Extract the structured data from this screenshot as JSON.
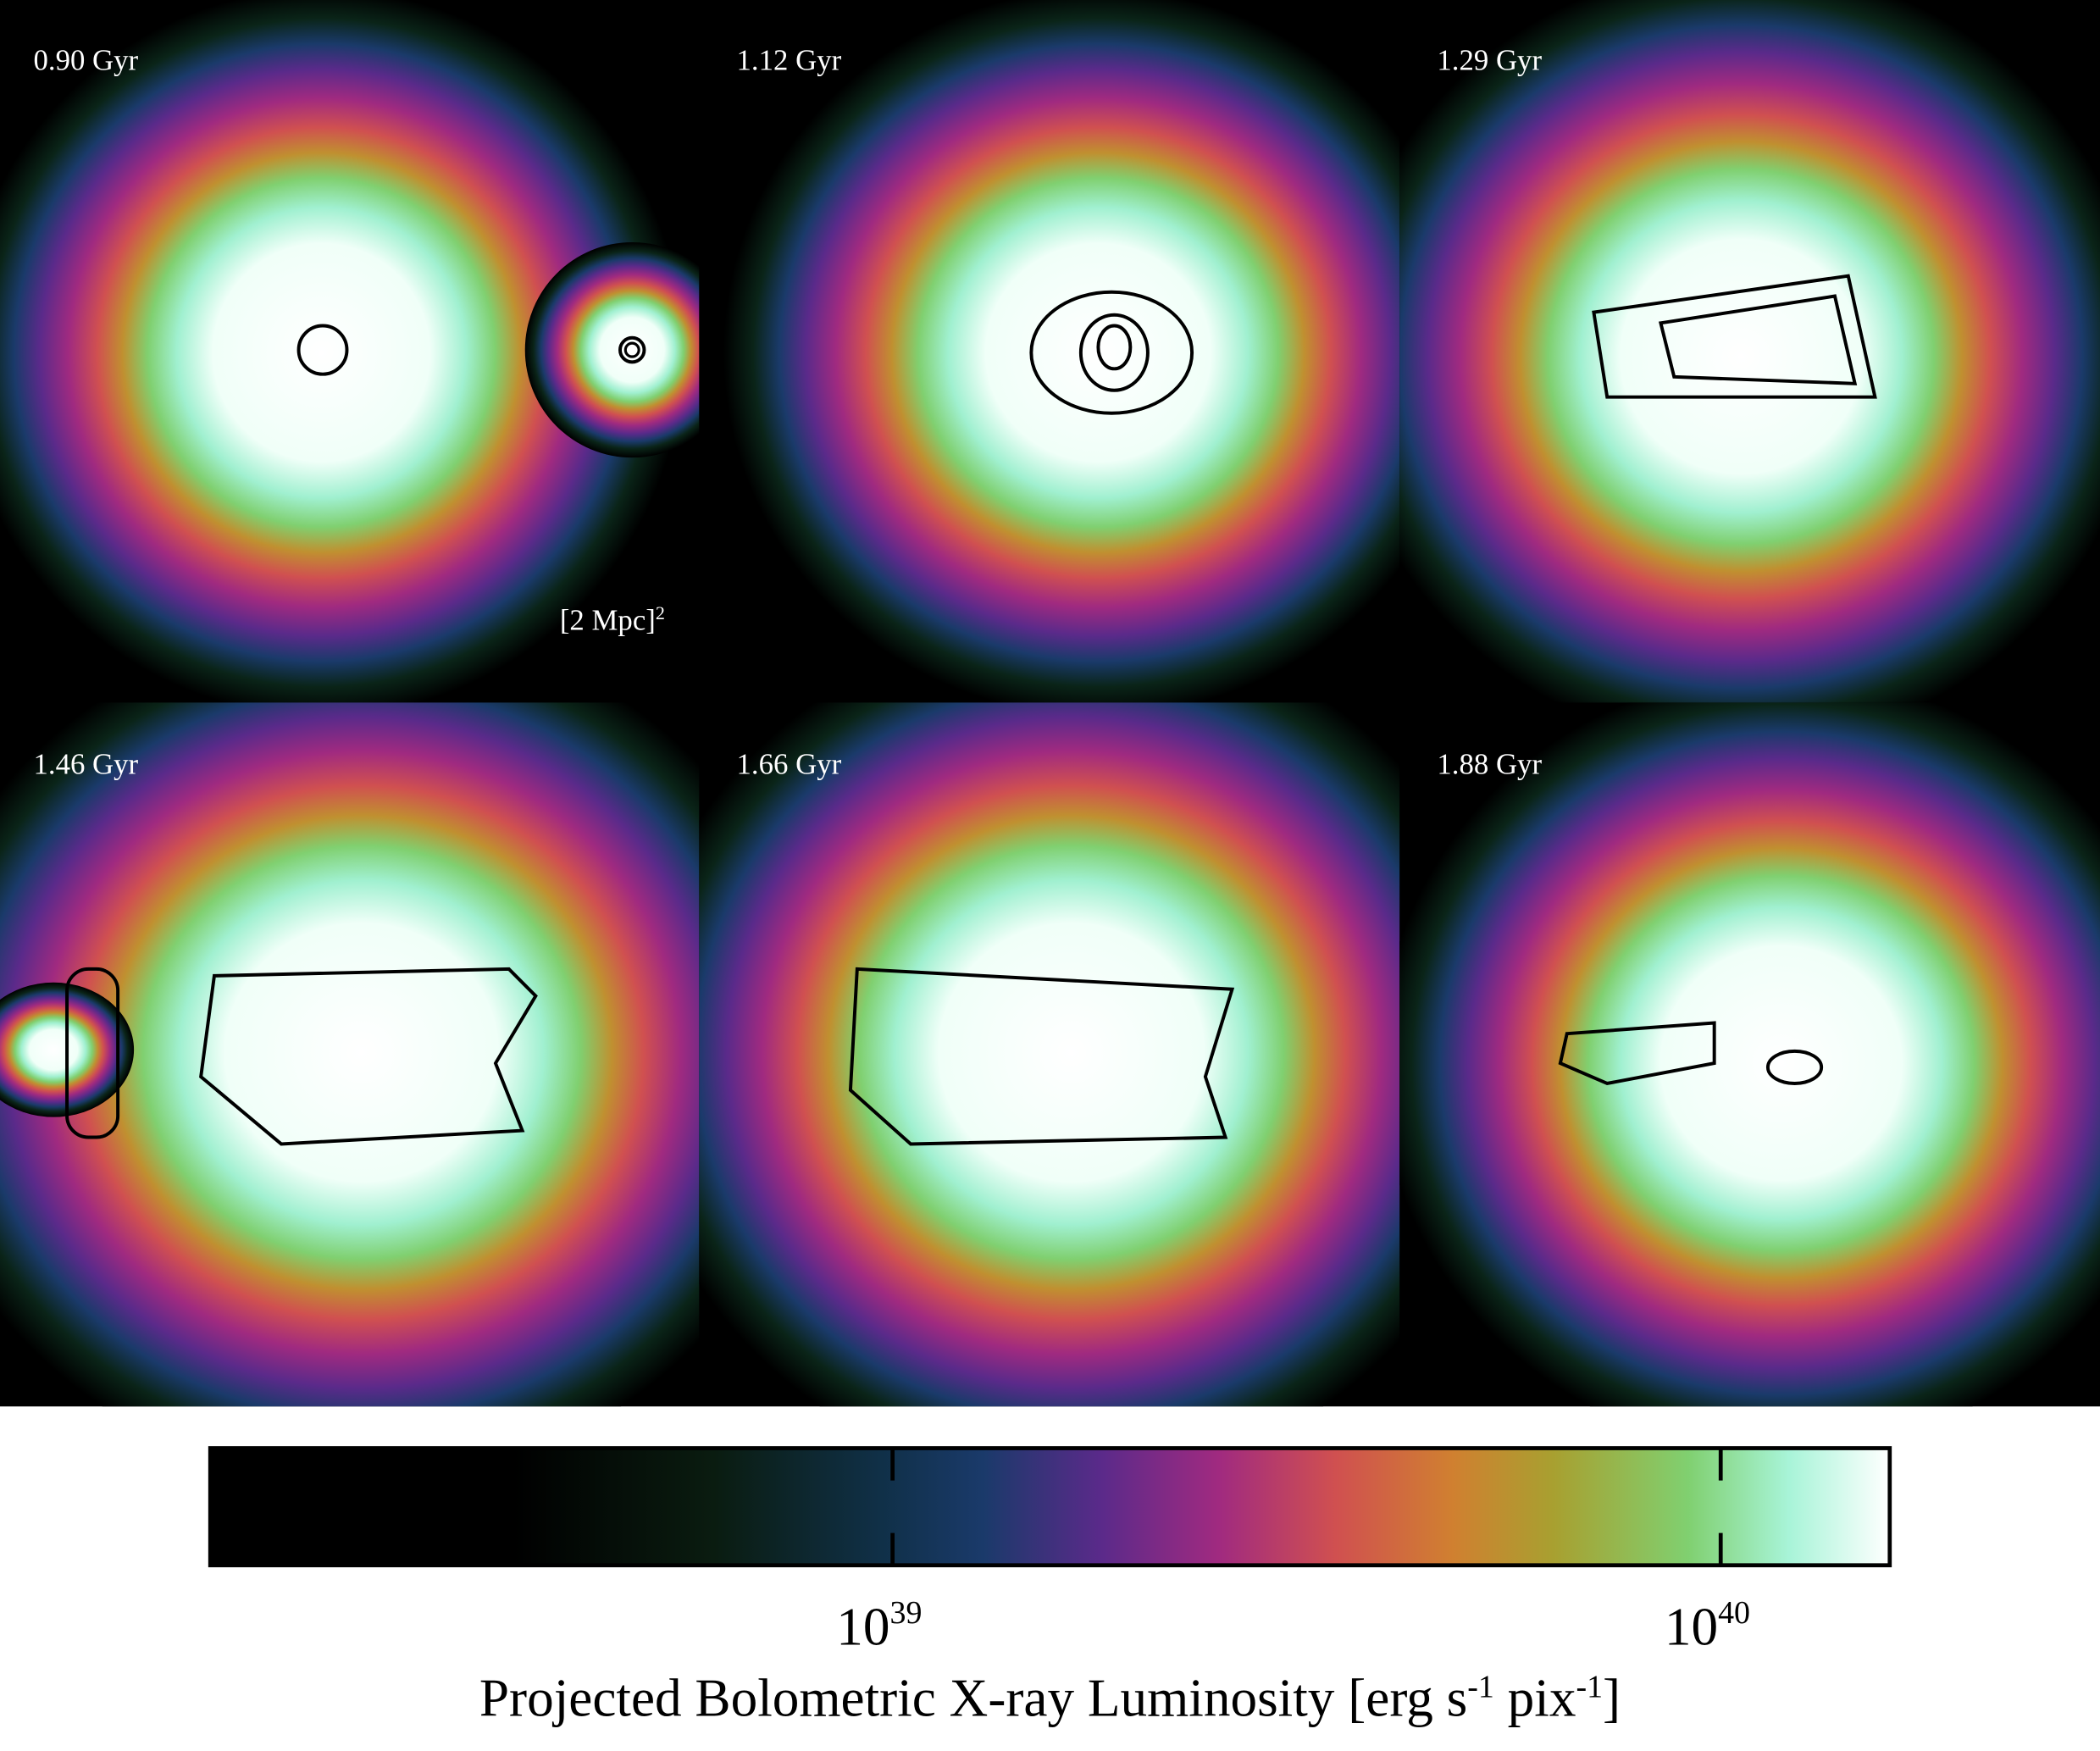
{
  "panels": [
    {
      "label": "1.12 Gyr"
    },
    {
      "label": "1.29 Gyr"
    },
    {
      "label": "0.90 Gyr"
    },
    {
      "label": "1.46 Gyr"
    },
    {
      "label": "1.66 Gyr"
    },
    {
      "label": "1.88 Gyr"
    }
  ],
  "scale_label": {
    "text": "[2 Mpc]",
    "sup": "2"
  },
  "colorbar": {
    "clim": [
      1.5e+38,
      1.6e+40
    ],
    "log_scale": true,
    "ticks": [
      {
        "value": 1e+39,
        "label": "10",
        "sup": "39"
      },
      {
        "value": 1e+40,
        "label": "10",
        "sup": "40"
      }
    ],
    "label": [
      "Projected Bolometric X-ray Luminosity [erg s",
      "-1",
      "pix",
      "-1",
      "]"
    ]
  }
}
